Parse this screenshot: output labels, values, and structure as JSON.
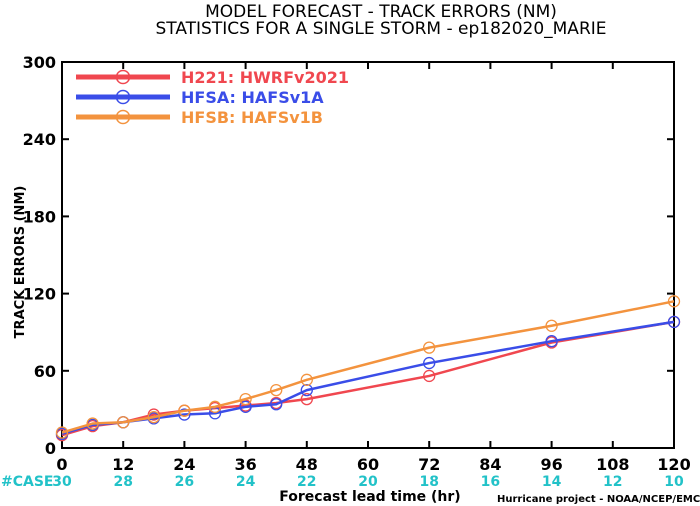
{
  "title_line1": "MODEL FORECAST - TRACK ERRORS (NM)",
  "title_line2": "STATISTICS FOR A SINGLE STORM - ep182020_MARIE",
  "case_label": "#CASE",
  "case_color": "#22c2c8",
  "credit": "Hurricane project - NOAA/NCEP/EMC",
  "chart_data": {
    "type": "line",
    "title": "MODEL FORECAST - TRACK ERRORS (NM)",
    "xlabel": "Forecast lead time (hr)",
    "ylabel": "TRACK ERRORS (NM)",
    "xlim": [
      0,
      120
    ],
    "ylim": [
      0,
      300
    ],
    "x_ticks": [
      "0",
      "12",
      "24",
      "36",
      "48",
      "60",
      "72",
      "84",
      "96",
      "108",
      "120"
    ],
    "y_ticks": [
      "0",
      "60",
      "120",
      "180",
      "240",
      "300"
    ],
    "case_counts": [
      "30",
      "28",
      "26",
      "24",
      "22",
      "20",
      "18",
      "16",
      "14",
      "12",
      "10"
    ],
    "legend_position": "top-left",
    "grid": false,
    "series": [
      {
        "name": "H221: HWRFv2021",
        "color": "#f0474f",
        "x": [
          0,
          6,
          12,
          18,
          24,
          30,
          36,
          42,
          48,
          72,
          96,
          120
        ],
        "y": [
          10,
          17,
          20,
          26,
          29,
          31,
          33,
          35,
          38,
          56,
          82,
          98
        ]
      },
      {
        "name": "HFSA: HAFSv1A",
        "color": "#3a4de8",
        "x": [
          0,
          6,
          12,
          18,
          24,
          30,
          36,
          42,
          48,
          72,
          96,
          120
        ],
        "y": [
          11,
          18,
          20,
          23,
          26,
          27,
          32,
          34,
          45,
          66,
          83,
          98
        ]
      },
      {
        "name": "HFSB: HAFSv1B",
        "color": "#f3933e",
        "x": [
          0,
          6,
          12,
          18,
          24,
          30,
          36,
          42,
          48,
          72,
          96,
          120
        ],
        "y": [
          12,
          19,
          20,
          24,
          29,
          32,
          38,
          45,
          53,
          78,
          95,
          114
        ]
      }
    ]
  }
}
